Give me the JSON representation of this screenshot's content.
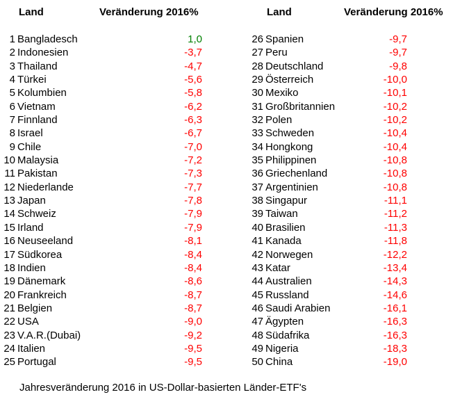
{
  "headers": {
    "land": "Land",
    "change": "Veränderung 2016%"
  },
  "caption": "Jahresveränderung 2016 in US-Dollar-basierten Länder-ETF's",
  "colors": {
    "positive": "#008000",
    "negative": "#ff0000"
  },
  "left_rows": [
    {
      "rank": "1",
      "country": "Bangladesch",
      "value": "1,0"
    },
    {
      "rank": "2",
      "country": "Indonesien",
      "value": "-3,7"
    },
    {
      "rank": "3",
      "country": "Thailand",
      "value": "-4,7"
    },
    {
      "rank": "4",
      "country": "Türkei",
      "value": "-5,6"
    },
    {
      "rank": "5",
      "country": "Kolumbien",
      "value": "-5,8"
    },
    {
      "rank": "6",
      "country": "Vietnam",
      "value": "-6,2"
    },
    {
      "rank": "7",
      "country": "Finnland",
      "value": "-6,3"
    },
    {
      "rank": "8",
      "country": "Israel",
      "value": "-6,7"
    },
    {
      "rank": "9",
      "country": "Chile",
      "value": "-7,0"
    },
    {
      "rank": "10",
      "country": "Malaysia",
      "value": "-7,2"
    },
    {
      "rank": "11",
      "country": "Pakistan",
      "value": "-7,3"
    },
    {
      "rank": "12",
      "country": "Niederlande",
      "value": "-7,7"
    },
    {
      "rank": "13",
      "country": "Japan",
      "value": "-7,8"
    },
    {
      "rank": "14",
      "country": "Schweiz",
      "value": "-7,9"
    },
    {
      "rank": "15",
      "country": "Irland",
      "value": "-7,9"
    },
    {
      "rank": "16",
      "country": "Neuseeland",
      "value": "-8,1"
    },
    {
      "rank": "17",
      "country": "Südkorea",
      "value": "-8,4"
    },
    {
      "rank": "18",
      "country": "Indien",
      "value": "-8,4"
    },
    {
      "rank": "19",
      "country": "Dänemark",
      "value": "-8,6"
    },
    {
      "rank": "20",
      "country": "Frankreich",
      "value": "-8,7"
    },
    {
      "rank": "21",
      "country": "Belgien",
      "value": "-8,7"
    },
    {
      "rank": "22",
      "country": "USA",
      "value": "-9,0"
    },
    {
      "rank": "23",
      "country": "V.A.R.(Dubai)",
      "value": "-9,2"
    },
    {
      "rank": "24",
      "country": "Italien",
      "value": "-9,5"
    },
    {
      "rank": "25",
      "country": "Portugal",
      "value": "-9,5"
    }
  ],
  "right_rows": [
    {
      "rank": "26",
      "country": "Spanien",
      "value": "-9,7"
    },
    {
      "rank": "27",
      "country": "Peru",
      "value": "-9,7"
    },
    {
      "rank": "28",
      "country": "Deutschland",
      "value": "-9,8"
    },
    {
      "rank": "29",
      "country": "Österreich",
      "value": "-10,0"
    },
    {
      "rank": "30",
      "country": "Mexiko",
      "value": "-10,1"
    },
    {
      "rank": "31",
      "country": "Großbritannien",
      "value": "-10,2"
    },
    {
      "rank": "32",
      "country": "Polen",
      "value": "-10,2"
    },
    {
      "rank": "33",
      "country": "Schweden",
      "value": "-10,4"
    },
    {
      "rank": "34",
      "country": "Hongkong",
      "value": "-10,4"
    },
    {
      "rank": "35",
      "country": "Philippinen",
      "value": "-10,8"
    },
    {
      "rank": "36",
      "country": "Griechenland",
      "value": "-10,8"
    },
    {
      "rank": "37",
      "country": "Argentinien",
      "value": "-10,8"
    },
    {
      "rank": "38",
      "country": "Singapur",
      "value": "-11,1"
    },
    {
      "rank": "39",
      "country": "Taiwan",
      "value": "-11,2"
    },
    {
      "rank": "40",
      "country": "Brasilien",
      "value": "-11,3"
    },
    {
      "rank": "41",
      "country": "Kanada",
      "value": "-11,8"
    },
    {
      "rank": "42",
      "country": "Norwegen",
      "value": "-12,2"
    },
    {
      "rank": "43",
      "country": "Katar",
      "value": "-13,4"
    },
    {
      "rank": "44",
      "country": "Australien",
      "value": "-14,3"
    },
    {
      "rank": "45",
      "country": "Russland",
      "value": "-14,6"
    },
    {
      "rank": "46",
      "country": "Saudi Arabien",
      "value": "-16,1"
    },
    {
      "rank": "47",
      "country": "Ägypten",
      "value": "-16,3"
    },
    {
      "rank": "48",
      "country": "Südafrika",
      "value": "-16,3"
    },
    {
      "rank": "49",
      "country": "Nigeria",
      "value": "-18,3"
    },
    {
      "rank": "50",
      "country": "China",
      "value": "-19,0"
    }
  ]
}
